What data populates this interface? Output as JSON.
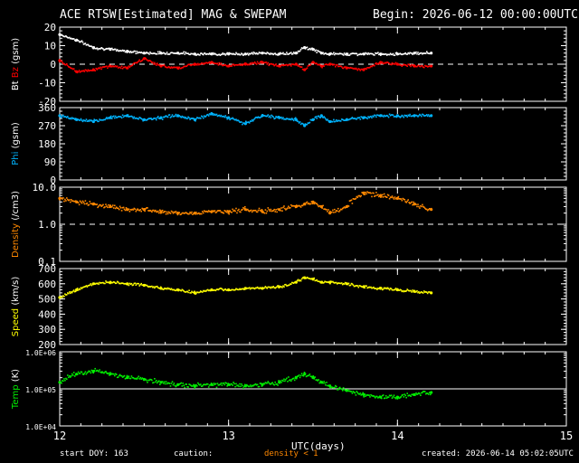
{
  "header": {
    "title": "ACE RTSW[Estimated] MAG & SWEPAM",
    "begin": "Begin: 2026-06-12 00:00:00UTC"
  },
  "footer": {
    "start_doy": "start DOY: 163",
    "caution": "caution:",
    "density_note": "density < 1",
    "created": "created: 2026-06-14 05:02:05UTC"
  },
  "colors": {
    "background": "#000000",
    "axes": "#ffffff",
    "bt": "#ffffff",
    "bz": "#ff0000",
    "phi": "#00b4ff",
    "density": "#ff8800",
    "speed": "#ffff00",
    "temp": "#00ee00"
  },
  "chart_data": {
    "type": "scatter",
    "title": "ACE RTSW[Estimated] MAG & SWEPAM",
    "xlabel": "UTC(days)",
    "x_ticks": [
      "12",
      "13",
      "14",
      "15"
    ],
    "x_range": [
      12,
      15
    ],
    "panels": [
      {
        "id": "mag",
        "ylabel_parts": [
          {
            "text": "Bt",
            "color": "#ffffff"
          },
          {
            "text": "Bz",
            "color": "#ff0000"
          },
          {
            "text": "(gsm)",
            "color": "#ffffff"
          }
        ],
        "scale": "linear",
        "ylim": [
          -20,
          20
        ],
        "y_ticks": [
          "-20",
          "-10",
          "0",
          "10",
          "20"
        ],
        "reference_line": 0,
        "series": [
          {
            "name": "Bt",
            "color": "#ffffff",
            "x": [
              12.0,
              12.1,
              12.2,
              12.3,
              12.4,
              12.5,
              12.6,
              12.7,
              12.8,
              12.9,
              13.0,
              13.1,
              13.2,
              13.3,
              13.4,
              13.45,
              13.5,
              13.55,
              13.6,
              13.7,
              13.8,
              13.9,
              14.0,
              14.1,
              14.2
            ],
            "y": [
              16,
              13,
              9,
              8,
              7,
              6,
              6,
              6,
              5.5,
              5.5,
              5.5,
              5.5,
              6,
              5.5,
              6,
              9,
              8,
              6,
              5.5,
              5.5,
              5.5,
              5.5,
              5.5,
              6,
              6
            ]
          },
          {
            "name": "Bz",
            "color": "#ff0000",
            "x": [
              12.0,
              12.1,
              12.2,
              12.3,
              12.4,
              12.5,
              12.6,
              12.7,
              12.8,
              12.9,
              13.0,
              13.1,
              13.2,
              13.3,
              13.4,
              13.45,
              13.5,
              13.55,
              13.6,
              13.7,
              13.8,
              13.9,
              14.0,
              14.1,
              14.2
            ],
            "y": [
              2,
              -4,
              -3,
              -1,
              -2,
              3,
              -1,
              -2,
              0,
              1,
              -1,
              0,
              1,
              -1,
              0,
              -3,
              1,
              -1,
              0,
              -2,
              -3,
              1,
              0,
              -1,
              -1
            ]
          }
        ]
      },
      {
        "id": "phi",
        "ylabel_parts": [
          {
            "text": "Phi",
            "color": "#00b4ff"
          },
          {
            "text": "(gsm)",
            "color": "#ffffff"
          }
        ],
        "scale": "linear",
        "ylim": [
          0,
          360
        ],
        "y_ticks": [
          "0",
          "90",
          "180",
          "270",
          "360"
        ],
        "series": [
          {
            "name": "Phi",
            "color": "#00b4ff",
            "x": [
              12.0,
              12.1,
              12.2,
              12.3,
              12.4,
              12.5,
              12.6,
              12.7,
              12.8,
              12.9,
              13.0,
              13.1,
              13.2,
              13.3,
              13.4,
              13.45,
              13.5,
              13.55,
              13.6,
              13.7,
              13.8,
              13.9,
              14.0,
              14.1,
              14.2
            ],
            "y": [
              320,
              300,
              290,
              310,
              320,
              300,
              310,
              320,
              300,
              330,
              310,
              280,
              320,
              310,
              300,
              270,
              300,
              320,
              290,
              300,
              310,
              320,
              320,
              320,
              320
            ]
          }
        ]
      },
      {
        "id": "density",
        "ylabel_parts": [
          {
            "text": "Density",
            "color": "#ff8800"
          },
          {
            "text": "(/cm3)",
            "color": "#ffffff"
          }
        ],
        "scale": "log",
        "ylim": [
          0.1,
          10
        ],
        "y_ticks": [
          "0.1",
          "1.0",
          "10.0"
        ],
        "reference_line": 1,
        "series": [
          {
            "name": "Density",
            "color": "#ff8800",
            "x": [
              12.0,
              12.1,
              12.2,
              12.3,
              12.4,
              12.5,
              12.6,
              12.7,
              12.8,
              12.9,
              13.0,
              13.1,
              13.2,
              13.3,
              13.4,
              13.45,
              13.5,
              13.55,
              13.6,
              13.7,
              13.8,
              13.9,
              14.0,
              14.1,
              14.2
            ],
            "y": [
              5,
              4,
              3.5,
              3,
              2.5,
              2.5,
              2.2,
              2,
              2,
              2.2,
              2.2,
              2.5,
              2.2,
              2.5,
              3,
              3.5,
              4,
              3,
              2,
              3,
              7,
              6,
              5,
              3.5,
              2.5
            ]
          }
        ]
      },
      {
        "id": "speed",
        "ylabel_parts": [
          {
            "text": "Speed",
            "color": "#ffff00"
          },
          {
            "text": "(km/s)",
            "color": "#ffffff"
          }
        ],
        "scale": "linear",
        "ylim": [
          200,
          700
        ],
        "y_ticks": [
          "200",
          "300",
          "400",
          "500",
          "600",
          "700"
        ],
        "series": [
          {
            "name": "Speed",
            "color": "#ffff00",
            "x": [
              12.0,
              12.1,
              12.2,
              12.3,
              12.4,
              12.5,
              12.6,
              12.7,
              12.8,
              12.9,
              13.0,
              13.1,
              13.2,
              13.3,
              13.4,
              13.45,
              13.5,
              13.55,
              13.6,
              13.7,
              13.8,
              13.9,
              14.0,
              14.1,
              14.2
            ],
            "y": [
              510,
              560,
              600,
              610,
              600,
              590,
              570,
              560,
              540,
              560,
              560,
              570,
              570,
              580,
              610,
              640,
              630,
              610,
              610,
              600,
              580,
              570,
              560,
              550,
              540
            ]
          }
        ]
      },
      {
        "id": "temp",
        "ylabel_parts": [
          {
            "text": "Temp",
            "color": "#00ee00"
          },
          {
            "text": "(K)",
            "color": "#ffffff"
          }
        ],
        "scale": "log",
        "ylim": [
          10000,
          1000000
        ],
        "y_ticks": [
          "1.0E+04",
          "1.0E+05",
          "1.0E+06"
        ],
        "reference_line": 100000,
        "series": [
          {
            "name": "Temp",
            "color": "#00ee00",
            "x": [
              12.0,
              12.1,
              12.2,
              12.3,
              12.4,
              12.5,
              12.6,
              12.7,
              12.8,
              12.9,
              13.0,
              13.1,
              13.2,
              13.3,
              13.4,
              13.45,
              13.5,
              13.55,
              13.6,
              13.7,
              13.8,
              13.9,
              14.0,
              14.1,
              14.2
            ],
            "y": [
              150000,
              250000,
              300000,
              250000,
              200000,
              180000,
              150000,
              130000,
              120000,
              130000,
              130000,
              120000,
              130000,
              150000,
              200000,
              250000,
              200000,
              150000,
              120000,
              90000,
              70000,
              60000,
              60000,
              70000,
              80000
            ]
          }
        ]
      }
    ]
  }
}
